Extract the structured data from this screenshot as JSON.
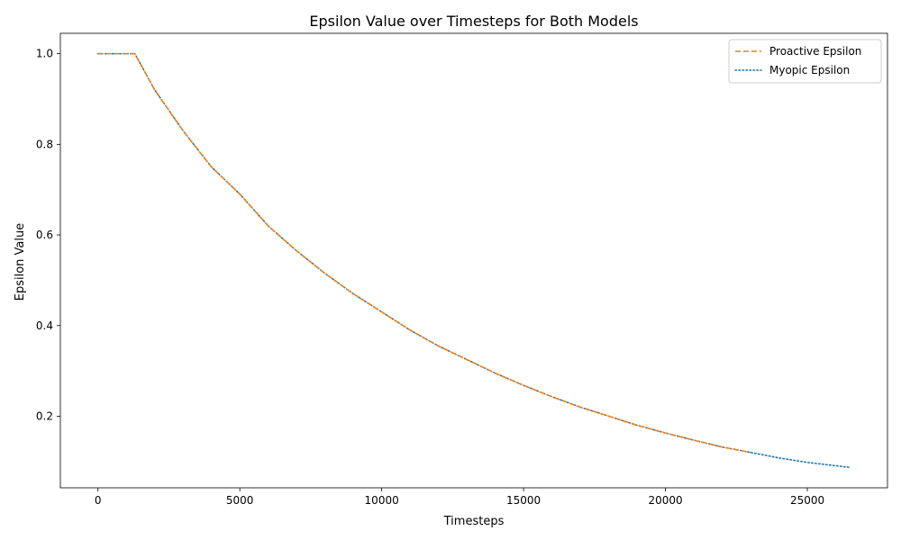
{
  "chart_data": {
    "type": "line",
    "title": "Epsilon Value over Timesteps for Both Models",
    "xlabel": "Timesteps",
    "ylabel": "Epsilon Value",
    "xlim": [
      -1325,
      27825
    ],
    "ylim": [
      0.042,
      1.045
    ],
    "xticks": [
      0,
      5000,
      10000,
      15000,
      20000,
      25000
    ],
    "xtick_labels": [
      "0",
      "5000",
      "10000",
      "15000",
      "20000",
      "25000"
    ],
    "yticks": [
      0.2,
      0.4,
      0.6,
      0.8,
      1.0
    ],
    "ytick_labels": [
      "0.2",
      "0.4",
      "0.6",
      "0.8",
      "1.0"
    ],
    "grid": false,
    "legend_position": "top-right",
    "series": [
      {
        "name": "Proactive Epsilon",
        "color": "#ff7f0e",
        "style": "dashed",
        "x": [
          0,
          1300,
          2000,
          3000,
          4000,
          5000,
          6000,
          7000,
          8000,
          9000,
          10000,
          11000,
          12000,
          13000,
          14000,
          15000,
          16000,
          17000,
          18000,
          19000,
          20000,
          21000,
          22000,
          23000
        ],
        "y": [
          1.0,
          1.0,
          0.92,
          0.83,
          0.75,
          0.69,
          0.62,
          0.565,
          0.515,
          0.47,
          0.43,
          0.39,
          0.355,
          0.325,
          0.295,
          0.268,
          0.243,
          0.22,
          0.2,
          0.18,
          0.163,
          0.147,
          0.132,
          0.12
        ]
      },
      {
        "name": "Myopic Epsilon",
        "color": "#1f77b4",
        "style": "dotted",
        "x": [
          0,
          1300,
          2000,
          3000,
          4000,
          5000,
          6000,
          7000,
          8000,
          9000,
          10000,
          11000,
          12000,
          13000,
          14000,
          15000,
          16000,
          17000,
          18000,
          19000,
          20000,
          21000,
          22000,
          23000,
          24000,
          25000,
          26500
        ],
        "y": [
          1.0,
          1.0,
          0.92,
          0.83,
          0.75,
          0.69,
          0.62,
          0.565,
          0.515,
          0.47,
          0.43,
          0.39,
          0.355,
          0.325,
          0.295,
          0.268,
          0.243,
          0.22,
          0.2,
          0.18,
          0.163,
          0.147,
          0.132,
          0.12,
          0.108,
          0.098,
          0.087
        ]
      }
    ]
  }
}
